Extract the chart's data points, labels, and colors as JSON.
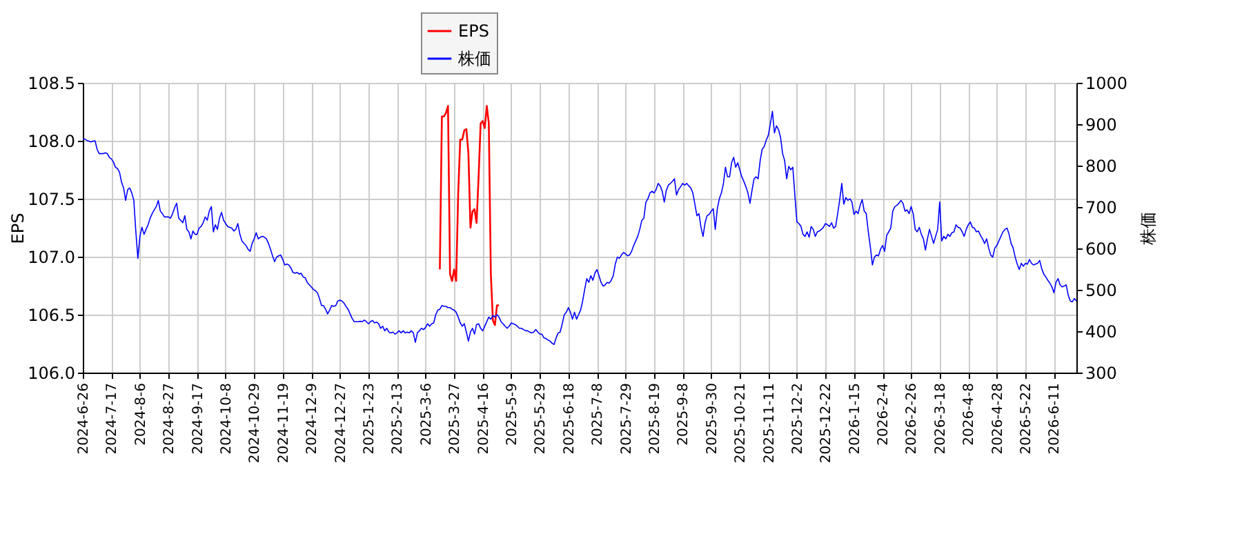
{
  "chart_data": {
    "type": "line",
    "ylabel": "EPS",
    "y2label": "株価",
    "categories": [
      "2024-6-26",
      null,
      null,
      null,
      null,
      null,
      null,
      null,
      null,
      null,
      null,
      null,
      null,
      null,
      "2024-7-17",
      null,
      null,
      null,
      null,
      null,
      null,
      null,
      null,
      null,
      null,
      null,
      null,
      null,
      "2024-8-6",
      null,
      null,
      null,
      null,
      null,
      null,
      null,
      null,
      null,
      null,
      null,
      null,
      null,
      "2024-8-27",
      null,
      null,
      null,
      null,
      null,
      null,
      null,
      null,
      null,
      null,
      null,
      null,
      null,
      "2024-9-17",
      null,
      null,
      null,
      null,
      null,
      null,
      null,
      null,
      null,
      null,
      null,
      null,
      null,
      "2024-10-8",
      null,
      null,
      null,
      null,
      null,
      null,
      null,
      null,
      null,
      null,
      null,
      null,
      null,
      "2024-10-29",
      null,
      null,
      null,
      null,
      null,
      null,
      null,
      null,
      null,
      null,
      null,
      null,
      null,
      "2024-11-19",
      null,
      null,
      null,
      null,
      null,
      null,
      null,
      null,
      null,
      null,
      null,
      null,
      null,
      "2024-12-9",
      null,
      null,
      null,
      null,
      null,
      null,
      null,
      null,
      null,
      null,
      null,
      null,
      null,
      "2024-12-27",
      null,
      null,
      null,
      null,
      null,
      null,
      null,
      null,
      null,
      null,
      null,
      null,
      null,
      "2025-1-23",
      null,
      null,
      null,
      null,
      null,
      null,
      null,
      null,
      null,
      null,
      null,
      null,
      null,
      "2025-2-13",
      null,
      null,
      null,
      null,
      null,
      null,
      null,
      null,
      null,
      null,
      null,
      null,
      null,
      "2025-3-6",
      null,
      null,
      null,
      null,
      null,
      null,
      null,
      null,
      null,
      null,
      null,
      null,
      null,
      "2025-3-27",
      null,
      null,
      null,
      null,
      null,
      null,
      null,
      null,
      null,
      null,
      null,
      null,
      null,
      "2025-4-16",
      null,
      null,
      null,
      null,
      null,
      null,
      null,
      null,
      null,
      null,
      null,
      null,
      null,
      "2025-5-9",
      null,
      null,
      null,
      null,
      null,
      null,
      null,
      null,
      null,
      null,
      null,
      null,
      null,
      "2025-5-29",
      null,
      null,
      null,
      null,
      null,
      null,
      null,
      null,
      null,
      null,
      null,
      null,
      null,
      "2025-6-18",
      null,
      null,
      null,
      null,
      null,
      null,
      null,
      null,
      null,
      null,
      null,
      null,
      null,
      "2025-7-8",
      null,
      null,
      null,
      null,
      null,
      null,
      null,
      null,
      null,
      null,
      null,
      null,
      null,
      "2025-7-29",
      null,
      null,
      null,
      null,
      null,
      null,
      null,
      null,
      null,
      null,
      null,
      null,
      null,
      "2025-8-19",
      null,
      null,
      null,
      null,
      null,
      null,
      null,
      null,
      null,
      null,
      null,
      null,
      null,
      "2025-9-8",
      null,
      null,
      null,
      null,
      null,
      null,
      null,
      null,
      null,
      null,
      null,
      null,
      null,
      "2025-9-30",
      null,
      null,
      null,
      null,
      null,
      null,
      null,
      null,
      null,
      null,
      null,
      null,
      null,
      "2025-10-21",
      null,
      null,
      null,
      null,
      null,
      null,
      null,
      null,
      null,
      null,
      null,
      null,
      null,
      "2025-11-11",
      null,
      null,
      null,
      null,
      null,
      null,
      null,
      null,
      null,
      null,
      null,
      null,
      null,
      "2025-12-2",
      null,
      null,
      null,
      null,
      null,
      null,
      null,
      null,
      null,
      null,
      null,
      null,
      null,
      "2025-12-22",
      null,
      null,
      null,
      null,
      null,
      null,
      null,
      null,
      null,
      null,
      null,
      null,
      null,
      "2026-1-15",
      null,
      null,
      null,
      null,
      null,
      null,
      null,
      null,
      null,
      null,
      null,
      null,
      null,
      "2026-2-4",
      null,
      null,
      null,
      null,
      null,
      null,
      null,
      null,
      null,
      null,
      null,
      null,
      null,
      "2026-2-26",
      null,
      null,
      null,
      null,
      null,
      null,
      null,
      null,
      null,
      null,
      null,
      null,
      null,
      "2026-3-18",
      null,
      null,
      null,
      null,
      null,
      null,
      null,
      null,
      null,
      null,
      null,
      null,
      null,
      "2026-4-8",
      null,
      null,
      null,
      null,
      null,
      null,
      null,
      null,
      null,
      null,
      null,
      null,
      null,
      "2026-4-28",
      null,
      null,
      null,
      null,
      null,
      null,
      null,
      null,
      null,
      null,
      null,
      null,
      null,
      "2026-5-22",
      null,
      null,
      null,
      null,
      null,
      null,
      null,
      null,
      null,
      null,
      null,
      null,
      null,
      "2026-6-11",
      null,
      null,
      null,
      null,
      null,
      null,
      null,
      null,
      null,
      null,
      null
    ],
    "ylim": [
      106.0,
      108.5
    ],
    "yticks": [
      {
        "value": 106,
        "label": "106.0"
      },
      106.5,
      {
        "value": 107,
        "label": "107.0"
      },
      107.5,
      {
        "value": 108,
        "label": "108.0"
      },
      108.5
    ],
    "y2lim": [
      300,
      1000
    ],
    "y2ticks": [
      300,
      400,
      500,
      600,
      700,
      800,
      900,
      1000
    ],
    "grid": true,
    "legend": "top",
    "series": [
      {
        "name": "EPS",
        "color": "#ff0000",
        "values": [
          null,
          null,
          null,
          null,
          null,
          null,
          null,
          null,
          null,
          null,
          null,
          null,
          null,
          null,
          null,
          null,
          null,
          null,
          null,
          null,
          null,
          null,
          null,
          null,
          null,
          null,
          null,
          null,
          null,
          null,
          null,
          null,
          null,
          null,
          null,
          null,
          null,
          null,
          null,
          null,
          null,
          null,
          null,
          null,
          null,
          null,
          null,
          null,
          null,
          null,
          null,
          null,
          null,
          null,
          null,
          null,
          null,
          null,
          null,
          null,
          null,
          null,
          null,
          null,
          null,
          null,
          null,
          null,
          null,
          null,
          null,
          null,
          null,
          null,
          null,
          null,
          null,
          null,
          null,
          null,
          null,
          null,
          null,
          null,
          null,
          null,
          null,
          null,
          null,
          null,
          null,
          null,
          null,
          null,
          null,
          null,
          null,
          null,
          null,
          null,
          null,
          null,
          null,
          null,
          null,
          null,
          null,
          null,
          null,
          null,
          null,
          null,
          null,
          null,
          null,
          null,
          null,
          null,
          null,
          null,
          null,
          null,
          null,
          null,
          null,
          null,
          null,
          null,
          null,
          null,
          null,
          null,
          null,
          null,
          null,
          null,
          null,
          null,
          null,
          null,
          null,
          null,
          null,
          null,
          null,
          null,
          null,
          null,
          null,
          null,
          null,
          null,
          null,
          null,
          null,
          null,
          null,
          null,
          null,
          null,
          null,
          null,
          null,
          null,
          null,
          null,
          null,
          null,
          null,
          null,
          null,
          null,
          null,
          null,
          null,
          106.89,
          108.21,
          108.21,
          108.24,
          108.3,
          106.85,
          106.79,
          106.89,
          106.79,
          107.55,
          108.01,
          108.01,
          108.09,
          108.1,
          107.89,
          107.25,
          107.39,
          107.41,
          107.29,
          107.69,
          108.15,
          108.17,
          108.11,
          108.3,
          108.15,
          106.85,
          106.45,
          106.41,
          106.58,
          106.58,
          null,
          null,
          null,
          null,
          null,
          null,
          null,
          null,
          null,
          null,
          null,
          null,
          null,
          null,
          null,
          null,
          null,
          null,
          null,
          null,
          null,
          null,
          null,
          null,
          null,
          null,
          null,
          null,
          null,
          null,
          null,
          null,
          null,
          null,
          null,
          null,
          null,
          null,
          null,
          null,
          null,
          null,
          null,
          null,
          null,
          null,
          null,
          null,
          null,
          null,
          null,
          null,
          null,
          null,
          null,
          null,
          null,
          null,
          null,
          null,
          null,
          null,
          null,
          null,
          null,
          null,
          null,
          null,
          null,
          null,
          null,
          null,
          null,
          null,
          null,
          null,
          null,
          null,
          null,
          null,
          null,
          null,
          null,
          null,
          null,
          null,
          null,
          null,
          null,
          null,
          null,
          null,
          null,
          null,
          null,
          null,
          null,
          null,
          null,
          null,
          null,
          null,
          null,
          null,
          null,
          null,
          null,
          null,
          null,
          null,
          null,
          null,
          null,
          null,
          null,
          null,
          null,
          null,
          null,
          null,
          null,
          null,
          null,
          null,
          null,
          null,
          null,
          null,
          null,
          null,
          null,
          null,
          null,
          null,
          null,
          null,
          null,
          null,
          null,
          null,
          null,
          null,
          null,
          null,
          null,
          null,
          null,
          null,
          null,
          null,
          null,
          null,
          null,
          null,
          null,
          null,
          null,
          null,
          null,
          null,
          null,
          null,
          null,
          null,
          null,
          null,
          null,
          null,
          null,
          null,
          null,
          null,
          null,
          null,
          null,
          null,
          null,
          null,
          null,
          null,
          null,
          null,
          null,
          null,
          null,
          null,
          null,
          null,
          null,
          null,
          null,
          null,
          null,
          null,
          null,
          null,
          null,
          null,
          null,
          null,
          null,
          null,
          null,
          null,
          null,
          null,
          null,
          null,
          null,
          null,
          null,
          null,
          null,
          null,
          null,
          null,
          null,
          null,
          null,
          null,
          null,
          null,
          null,
          null,
          null,
          null,
          null,
          null,
          null,
          null,
          null,
          null,
          null,
          null,
          null,
          null,
          null,
          null,
          null,
          null,
          null,
          null,
          null,
          null,
          null,
          null,
          null,
          null,
          null,
          null,
          null,
          null,
          null,
          null,
          null,
          null,
          null,
          null,
          null,
          null,
          null,
          null,
          null,
          null,
          null,
          null,
          null,
          null,
          null,
          null,
          null,
          null,
          null,
          null,
          null,
          null,
          null,
          null,
          null,
          null,
          null,
          null,
          null
        ]
      },
      {
        "name": "株価",
        "color": "#0000ff",
        "axis": "y2",
        "values": [
          864,
          864,
          861,
          859,
          857,
          859,
          860,
          840,
          829,
          829,
          829,
          831,
          829,
          820,
          816,
          809,
          796,
          793,
          784,
          760,
          746,
          716,
          742,
          746,
          734,
          716,
          640,
          576,
          629,
          651,
          634,
          646,
          657,
          673,
          684,
          693,
          701,
          716,
          690,
          684,
          676,
          676,
          676,
          673,
          684,
          698,
          709,
          673,
          668,
          662,
          679,
          646,
          640,
          623,
          642,
          634,
          634,
          649,
          653,
          662,
          676,
          668,
          690,
          701,
          640,
          657,
          646,
          673,
          687,
          668,
          660,
          653,
          651,
          649,
          642,
          646,
          660,
          634,
          618,
          612,
          607,
          598,
          593,
          612,
          623,
          638,
          623,
          627,
          629,
          627,
          623,
          612,
          598,
          582,
          568,
          579,
          582,
          584,
          573,
          560,
          562,
          560,
          553,
          542,
          540,
          542,
          538,
          540,
          531,
          529,
          518,
          512,
          507,
          501,
          498,
          493,
          479,
          462,
          462,
          453,
          442,
          451,
          462,
          460,
          462,
          473,
          475,
          473,
          468,
          460,
          453,
          442,
          431,
          423,
          423,
          423,
          424,
          423,
          427,
          423,
          418,
          423,
          426,
          420,
          422,
          418,
          407,
          412,
          401,
          407,
          398,
          396,
          398,
          393,
          396,
          401,
          396,
          401,
          396,
          398,
          396,
          401,
          396,
          373,
          396,
          401,
          407,
          404,
          409,
          418,
          412,
          418,
          420,
          440,
          451,
          453,
          462,
          460,
          460,
          457,
          457,
          453,
          451,
          446,
          434,
          420,
          412,
          418,
          398,
          376,
          398,
          407,
          393,
          416,
          418,
          407,
          401,
          412,
          423,
          434,
          429,
          438,
          434,
          440,
          434,
          423,
          418,
          412,
          407,
          412,
          420,
          418,
          416,
          412,
          407,
          407,
          404,
          401,
          401,
          398,
          396,
          398,
          404,
          398,
          393,
          393,
          384,
          382,
          379,
          376,
          371,
          368,
          384,
          396,
          398,
          418,
          440,
          446,
          457,
          446,
          429,
          446,
          429,
          440,
          451,
          473,
          501,
          527,
          518,
          534,
          523,
          540,
          549,
          534,
          518,
          509,
          512,
          518,
          516,
          523,
          534,
          562,
          579,
          576,
          584,
          590,
          587,
          582,
          584,
          593,
          607,
          618,
          629,
          646,
          668,
          673,
          712,
          720,
          734,
          738,
          734,
          742,
          757,
          751,
          738,
          712,
          740,
          753,
          757,
          762,
          768,
          729,
          742,
          749,
          757,
          753,
          757,
          751,
          746,
          734,
          707,
          679,
          684,
          651,
          629,
          662,
          679,
          682,
          690,
          696,
          646,
          696,
          720,
          734,
          757,
          796,
          773,
          773,
          807,
          820,
          796,
          807,
          790,
          773,
          762,
          749,
          734,
          709,
          740,
          768,
          773,
          768,
          812,
          840,
          846,
          862,
          873,
          901,
          931,
          879,
          896,
          887,
          868,
          829,
          812,
          768,
          798,
          790,
          796,
          729,
          664,
          660,
          653,
          634,
          629,
          640,
          627,
          653,
          646,
          629,
          640,
          642,
          646,
          651,
          660,
          657,
          653,
          662,
          649,
          653,
          684,
          718,
          757,
          707,
          723,
          716,
          720,
          712,
          682,
          690,
          684,
          704,
          718,
          690,
          684,
          640,
          604,
          560,
          579,
          584,
          582,
          598,
          607,
          593,
          631,
          640,
          649,
          690,
          701,
          704,
          709,
          716,
          709,
          690,
          693,
          684,
          701,
          684,
          646,
          640,
          651,
          634,
          623,
          596,
          623,
          646,
          629,
          612,
          629,
          646,
          712,
          618,
          629,
          623,
          634,
          629,
          638,
          640,
          657,
          651,
          649,
          640,
          629,
          646,
          657,
          664,
          651,
          649,
          640,
          642,
          631,
          623,
          612,
          623,
          601,
          584,
          579,
          601,
          607,
          618,
          629,
          640,
          646,
          649,
          634,
          612,
          601,
          579,
          562,
          549,
          564,
          557,
          564,
          562,
          573,
          564,
          560,
          562,
          564,
          571,
          551,
          538,
          531,
          523,
          516,
          507,
          493,
          518,
          527,
          512,
          507,
          509,
          512,
          487,
          473,
          471,
          479,
          473
        ]
      }
    ]
  }
}
